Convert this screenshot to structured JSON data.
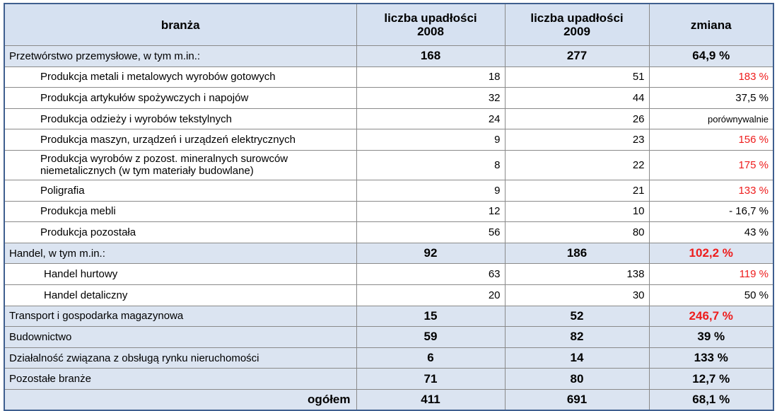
{
  "headers": {
    "branza": "branża",
    "y2008_line1": "liczba upadłości",
    "y2008_line2": "2008",
    "y2009_line1": "liczba upadłości",
    "y2009_line2": "2009",
    "zmiana": "zmiana"
  },
  "rows": [
    {
      "name": "Przetwórstwo przemysłowe, w tym m.in.:",
      "v2008": "168",
      "v2009": "277",
      "change": "64,9 %"
    },
    {
      "name": "Produkcja metali i metalowych wyrobów gotowych",
      "v2008": "18",
      "v2009": "51",
      "change": "183 %"
    },
    {
      "name": "Produkcja artykułów spożywczych i napojów",
      "v2008": "32",
      "v2009": "44",
      "change": "37,5 %"
    },
    {
      "name": "Produkcja odzieży i wyrobów tekstylnych",
      "v2008": "24",
      "v2009": "26",
      "change": "porównywalnie"
    },
    {
      "name": "Produkcja maszyn, urządzeń i urządzeń elektrycznych",
      "v2008": "9",
      "v2009": "23",
      "change": "156 %"
    },
    {
      "name_line1": "Produkcja wyrobów z pozost. mineralnych surowców",
      "name_line2": "niemetalicznych (w tym materiały budowlane)",
      "v2008": "8",
      "v2009": "22",
      "change": "175 %"
    },
    {
      "name": "Poligrafia",
      "v2008": "9",
      "v2009": "21",
      "change": "133 %"
    },
    {
      "name": "Produkcja mebli",
      "v2008": "12",
      "v2009": "10",
      "change": "- 16,7 %"
    },
    {
      "name": "Produkcja pozostała",
      "v2008": "56",
      "v2009": "80",
      "change": "43 %"
    },
    {
      "name": "Handel, w tym m.in.:",
      "v2008": "92",
      "v2009": "186",
      "change": "102,2 %"
    },
    {
      "name": "Handel hurtowy",
      "v2008": "63",
      "v2009": "138",
      "change": "119 %"
    },
    {
      "name": "Handel detaliczny",
      "v2008": "20",
      "v2009": "30",
      "change": "50 %"
    },
    {
      "name": "Transport i gospodarka magazynowa",
      "v2008": "15",
      "v2009": "52",
      "change": "246,7 %"
    },
    {
      "name": "Budownictwo",
      "v2008": "59",
      "v2009": "82",
      "change": "39 %"
    },
    {
      "name": "Działalność związana z obsługą rynku nieruchomości",
      "v2008": "6",
      "v2009": "14",
      "change": "133 %"
    },
    {
      "name": "Pozostałe branże",
      "v2008": "71",
      "v2009": "80",
      "change": "12,7 %"
    }
  ],
  "total": {
    "label": "ogółem",
    "v2008": "411",
    "v2009": "691",
    "change": "68,1 %"
  },
  "colors": {
    "header_bg": "#d6e1f1",
    "group_bg": "#dbe4f1",
    "highlight_red": "#ee1c1c",
    "border": "#3f5f8f"
  }
}
